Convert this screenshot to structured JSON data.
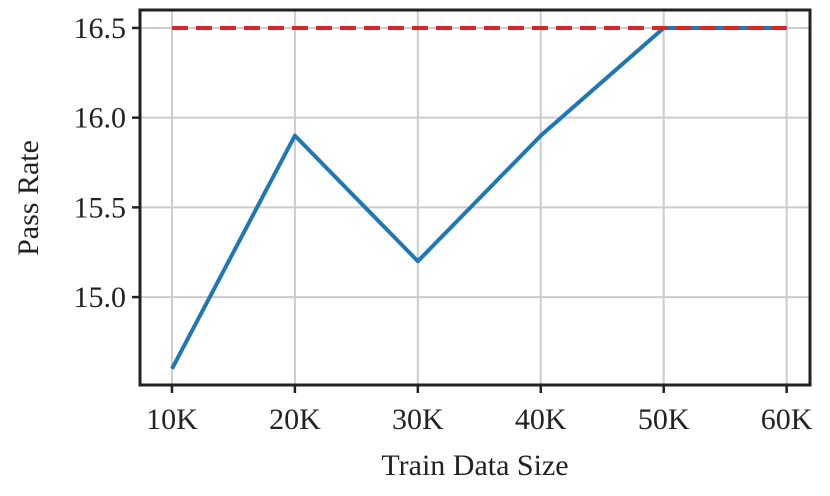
{
  "chart_data": {
    "type": "line",
    "x_label": "Train Data Size",
    "y_label": "Pass Rate",
    "x": [
      10000,
      20000,
      30000,
      40000,
      50000,
      60000
    ],
    "series": [
      {
        "color": "#1f77b4",
        "style": "solid",
        "values": [
          14.6,
          15.9,
          15.2,
          15.9,
          16.5,
          16.5
        ]
      },
      {
        "color": "#d62728",
        "style": "dashed",
        "values": [
          16.5,
          16.5,
          16.5,
          16.5,
          16.5,
          16.5
        ]
      }
    ],
    "xlim": [
      7400,
      61900
    ],
    "ylim": [
      14.51,
      16.6
    ],
    "xticks": [
      {
        "value": 10000,
        "label": "10K"
      },
      {
        "value": 20000,
        "label": "20K"
      },
      {
        "value": 30000,
        "label": "30K"
      },
      {
        "value": 40000,
        "label": "40K"
      },
      {
        "value": 50000,
        "label": "50K"
      },
      {
        "value": 60000,
        "label": "60K"
      }
    ],
    "yticks": [
      {
        "value": 15,
        "label": "15.0"
      },
      15.5,
      {
        "value": 16,
        "label": "16.0"
      },
      16.5
    ],
    "grid": true
  }
}
